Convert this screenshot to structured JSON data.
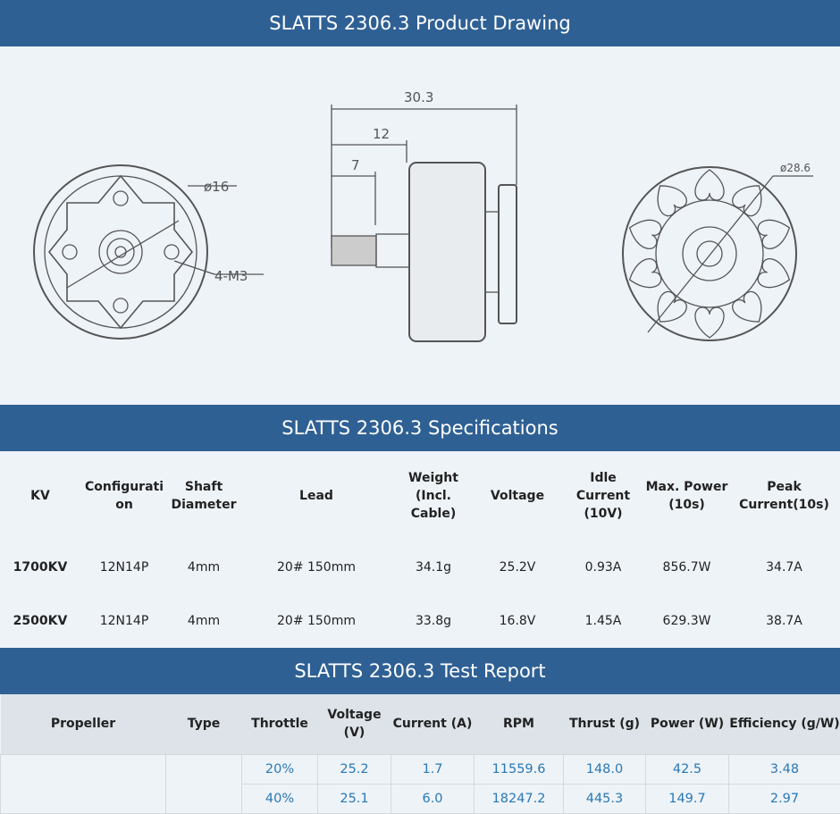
{
  "drawing": {
    "title": "SLATTS 2306.3 Product Drawing",
    "dims": {
      "overall": "30.3",
      "shaft_len": "12",
      "thread_len": "7",
      "base_dia": "ø16",
      "mount": "4-M3",
      "bell_dia": "ø28.6"
    }
  },
  "specs": {
    "title": "SLATTS 2306.3 Specifications",
    "headers": [
      "KV",
      "Configurati on",
      "Shaft Diameter",
      "Lead",
      "Weight (Incl. Cable)",
      "Voltage",
      "Idle Current (10V)",
      "Max. Power (10s)",
      "Peak Current(10s)"
    ],
    "rows": [
      [
        "1700KV",
        "12N14P",
        "4mm",
        "20# 150mm",
        "34.1g",
        "25.2V",
        "0.93A",
        "856.7W",
        "34.7A"
      ],
      [
        "2500KV",
        "12N14P",
        "4mm",
        "20# 150mm",
        "33.8g",
        "16.8V",
        "1.45A",
        "629.3W",
        "38.7A"
      ]
    ]
  },
  "test": {
    "title": "SLATTS 2306.3 Test Report",
    "headers": [
      "Propeller",
      "Type",
      "Throttle",
      "Voltage (V)",
      "Current (A)",
      "RPM",
      "Thrust (g)",
      "Power (W)",
      "Efficiency (g/W)"
    ],
    "rows": [
      [
        "20%",
        "25.2",
        "1.7",
        "11559.6",
        "148.0",
        "42.5",
        "3.48"
      ],
      [
        "40%",
        "25.1",
        "6.0",
        "18247.2",
        "445.3",
        "149.7",
        "2.97"
      ]
    ]
  },
  "colors": {
    "band": "#2f6094",
    "value_text": "#2a78b5"
  }
}
